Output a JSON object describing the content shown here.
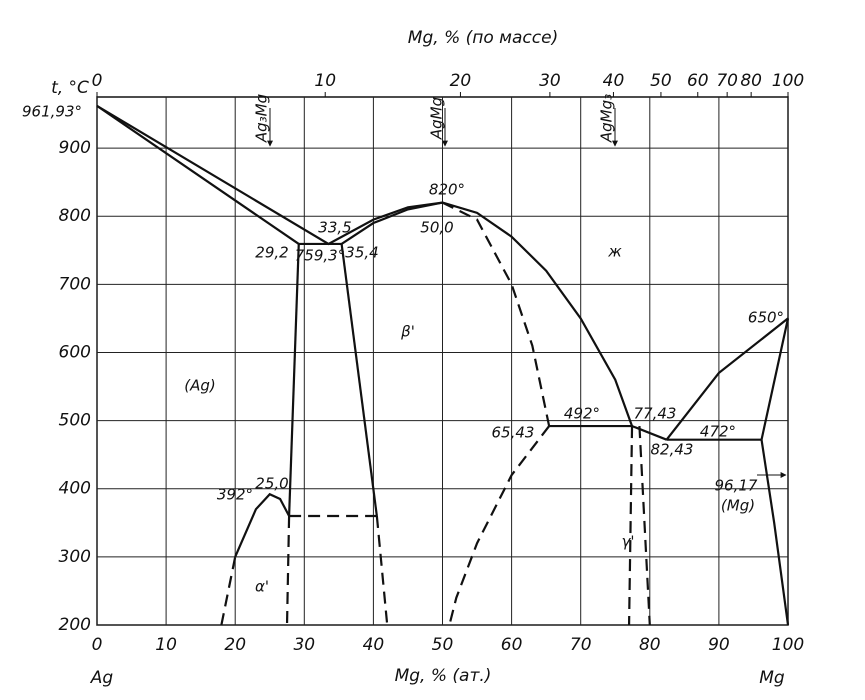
{
  "chart_data": {
    "type": "line",
    "title": "Mg, % (по массе)",
    "ylabel": "t, °C",
    "xlabel": "Mg, % (ат.)",
    "x_left_label": "Ag",
    "x_right_label": "Mg",
    "xlim": [
      0,
      100
    ],
    "ylim": [
      200,
      975
    ],
    "xticks": [
      0,
      10,
      20,
      30,
      40,
      50,
      60,
      70,
      80,
      90,
      100
    ],
    "yticks": [
      200,
      300,
      400,
      500,
      600,
      700,
      800,
      900
    ],
    "x2ticks": [
      0,
      10,
      20,
      30,
      40,
      50,
      60,
      70,
      80,
      100
    ],
    "grid": true,
    "color": "#111",
    "annotations": {
      "melting_ag": "961,93°",
      "ag3mg": "Ag₃Mg",
      "agmg": "AgMg",
      "agmg3": "AgMg₃",
      "max": "820°",
      "liq_eut": "33,5",
      "max_comp": "50,0",
      "ag_eut": "29,2",
      "eut_t": "759,3°",
      "beta_eut": "35,4",
      "liquid": "ж",
      "beta": "β'",
      "melting_mg": "650°",
      "ag_phase": "(Ag)",
      "beta_per": "65,43",
      "per_t": "492°",
      "gamma_per": "77,43",
      "eut2_t": "472°",
      "liq_eut2": "82,43",
      "alpha_comp": "25,0",
      "alpha_t": "392°",
      "mg_eut": "96,17",
      "mg_phase": "(Mg)",
      "alpha": "α'",
      "gamma": "γ'"
    },
    "series": [
      {
        "x": [
          0,
          29.2
        ],
        "values": [
          961.93,
          759.3
        ],
        "dashed": false
      },
      {
        "x": [
          0,
          33.5,
          40,
          45,
          50
        ],
        "values": [
          961.93,
          759.3,
          795,
          813,
          820
        ],
        "dashed": false
      },
      {
        "x": [
          29.2,
          35.4,
          40,
          45,
          50
        ],
        "values": [
          759.3,
          759.3,
          790,
          810,
          820
        ],
        "dashed": false
      },
      {
        "x": [
          50,
          55,
          60,
          65,
          70,
          75,
          77.43
        ],
        "values": [
          820,
          805,
          770,
          720,
          650,
          560,
          492
        ],
        "dashed": false
      },
      {
        "x": [
          50,
          55,
          60,
          63,
          65.43
        ],
        "values": [
          820,
          795,
          700,
          610,
          492
        ],
        "dashed": true
      },
      {
        "x": [
          29.2,
          27.8
        ],
        "values": [
          759.3,
          360
        ],
        "dashed": false
      },
      {
        "x": [
          27.8,
          27.5
        ],
        "values": [
          360,
          200
        ],
        "dashed": true
      },
      {
        "x": [
          20,
          23,
          25,
          26.5,
          27.8
        ],
        "values": [
          300,
          370,
          392,
          385,
          360
        ],
        "dashed": false
      },
      {
        "x": [
          18,
          20
        ],
        "values": [
          200,
          300
        ],
        "dashed": true
      },
      {
        "x": [
          27.8,
          40.5
        ],
        "values": [
          360,
          360
        ],
        "dashed": true
      },
      {
        "x": [
          35.4,
          40.5
        ],
        "values": [
          759.3,
          360
        ],
        "dashed": false
      },
      {
        "x": [
          40.5,
          42
        ],
        "values": [
          360,
          200
        ],
        "dashed": true
      },
      {
        "x": [
          65.43,
          60,
          55,
          52,
          51
        ],
        "values": [
          492,
          420,
          320,
          240,
          200
        ],
        "dashed": true
      },
      {
        "x": [
          65.43,
          77.43,
          82.43
        ],
        "values": [
          492,
          492,
          472
        ],
        "dashed": false
      },
      {
        "x": [
          77.43,
          77
        ],
        "values": [
          492,
          200
        ],
        "dashed": true
      },
      {
        "x": [
          78.5,
          80
        ],
        "values": [
          492,
          200
        ],
        "dashed": true
      },
      {
        "x": [
          82.43,
          96.17
        ],
        "values": [
          472,
          472
        ],
        "dashed": false
      },
      {
        "x": [
          82.43,
          90,
          100
        ],
        "values": [
          472,
          570,
          650
        ],
        "dashed": false
      },
      {
        "x": [
          96.17,
          100
        ],
        "values": [
          472,
          650
        ],
        "dashed": false
      },
      {
        "x": [
          96.17,
          98,
          100
        ],
        "values": [
          472,
          350,
          200
        ],
        "dashed": false
      }
    ]
  }
}
